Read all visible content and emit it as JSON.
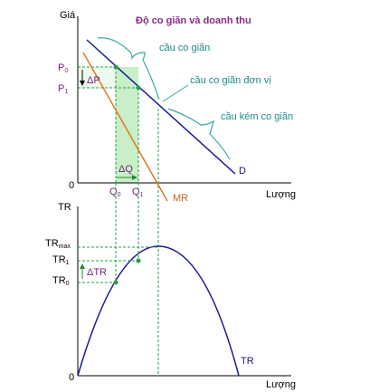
{
  "title": "Độ co giãn và doanh thu",
  "top_chart": {
    "y_axis_label": "Giá",
    "x_axis_label": "Lượng",
    "origin_label": "0",
    "p0_label": "P",
    "p0_sub": "0",
    "p1_label": "P",
    "p1_sub": "1",
    "q0_label": "Q",
    "q0_sub": "0",
    "q1_label": "Q",
    "q1_sub": "1",
    "delta_p_label": "ΔP",
    "delta_q_label": "ΔQ",
    "demand_label": "D",
    "mr_label": "MR",
    "annotation_elastic": "cầu co giãn",
    "annotation_unit_elastic": "cầu co giãn đơn vị",
    "annotation_inelastic": "cầu kém co giãn"
  },
  "bottom_chart": {
    "y_axis_label": "TR",
    "x_axis_label": "Lượng",
    "origin_label": "0",
    "trmax_label": "TR",
    "trmax_sub": "max",
    "tr1_label": "TR",
    "tr1_sub": "1",
    "tr0_label": "TR",
    "tr0_sub": "0",
    "delta_tr_label": "ΔTR",
    "tr_curve_label": "TR"
  },
  "colors": {
    "demand": "#1a1a99",
    "mr": "#e07820",
    "dashed_guides": "#22a044",
    "shade": "#c8efc8",
    "brace": "#3aa8a8",
    "title": "#8a2a8a"
  }
}
